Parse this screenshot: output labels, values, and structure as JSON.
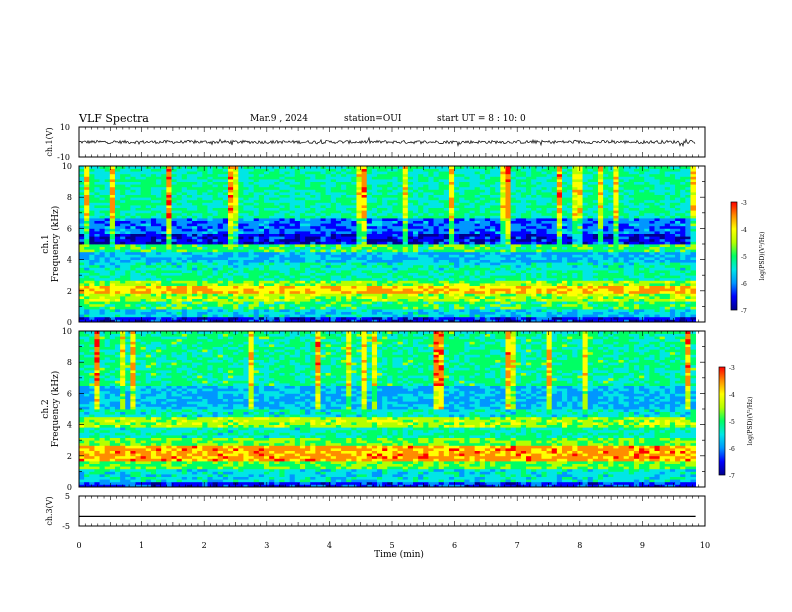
{
  "header": {
    "title": "VLF Spectra",
    "date": "Mar.9 , 2024",
    "station": "station=OUI",
    "start": "start UT = 8 : 10: 0"
  },
  "colors": {
    "trace": "#000000",
    "colormap": [
      "#00008c",
      "#0000ff",
      "#0096ff",
      "#00e6e6",
      "#00ff64",
      "#b4ff00",
      "#ffff00",
      "#ff8c00",
      "#ff0000",
      "#ff9696",
      "#ffffff"
    ]
  },
  "chart_data": [
    {
      "type": "line",
      "name": "ch1-waveform",
      "ylabel": "ch.1(V)",
      "ylim": [
        -10,
        10
      ],
      "yticks": [
        "10",
        "-10"
      ],
      "xlim": [
        0,
        10
      ],
      "trace_level": 0,
      "trace_end": 9.85,
      "annotation": "waveform noise band approx ±1 V"
    },
    {
      "type": "heatmap",
      "name": "ch1-spectrogram",
      "ylabel": "Frequency (kHz)",
      "channel_label": "ch.1",
      "ylim": [
        0,
        10
      ],
      "yticks": [
        "0",
        "2",
        "4",
        "6",
        "8",
        "10"
      ],
      "xlim": [
        0,
        10
      ],
      "data_end": 9.85,
      "colorbar": {
        "label": "log(PSD)(V²/Hz)",
        "range": [
          -7,
          -3
        ],
        "ticks": [
          "-3",
          "-4",
          "-5",
          "-6",
          "-7"
        ]
      },
      "bands": [
        {
          "f": [
            0,
            0.3
          ],
          "level": 0.12
        },
        {
          "f": [
            0.3,
            0.9
          ],
          "level": 0.35
        },
        {
          "f": [
            0.9,
            1.4
          ],
          "level": 0.5
        },
        {
          "f": [
            1.4,
            1.8
          ],
          "level": 0.62
        },
        {
          "f": [
            1.8,
            2.3
          ],
          "level": 0.82
        },
        {
          "f": [
            2.3,
            2.6
          ],
          "level": 0.6
        },
        {
          "f": [
            2.6,
            3.3
          ],
          "level": 0.45
        },
        {
          "f": [
            3.3,
            3.8
          ],
          "level": 0.4
        },
        {
          "f": [
            3.8,
            4.5
          ],
          "level": 0.3
        },
        {
          "f": [
            4.5,
            5.0
          ],
          "level": 0.52
        },
        {
          "f": [
            5.0,
            5.6
          ],
          "level": 0.1
        },
        {
          "f": [
            5.6,
            6.6
          ],
          "level": 0.22
        },
        {
          "f": [
            6.6,
            10.0
          ],
          "level": 0.44
        }
      ]
    },
    {
      "type": "heatmap",
      "name": "ch2-spectrogram",
      "ylabel": "Frequency (kHz)",
      "channel_label": "ch.2",
      "ylim": [
        0,
        10
      ],
      "yticks": [
        "0",
        "2",
        "4",
        "6",
        "8",
        "10"
      ],
      "xlim": [
        0,
        10
      ],
      "data_end": 9.85,
      "colorbar": {
        "label": "log(PSD)(V²/Hz)",
        "range": [
          -7,
          -3
        ],
        "ticks": [
          "-3",
          "-4",
          "-5",
          "-6",
          "-7"
        ]
      },
      "bands": [
        {
          "f": [
            0,
            0.4
          ],
          "level": 0.15
        },
        {
          "f": [
            0.4,
            1.2
          ],
          "level": 0.38
        },
        {
          "f": [
            1.2,
            1.6
          ],
          "level": 0.55
        },
        {
          "f": [
            1.6,
            2.6
          ],
          "level": 0.85
        },
        {
          "f": [
            2.6,
            3.2
          ],
          "level": 0.55
        },
        {
          "f": [
            3.2,
            3.8
          ],
          "level": 0.42
        },
        {
          "f": [
            3.8,
            4.5
          ],
          "level": 0.62
        },
        {
          "f": [
            4.5,
            5.0
          ],
          "level": 0.4
        },
        {
          "f": [
            5.0,
            6.5
          ],
          "level": 0.3
        },
        {
          "f": [
            6.5,
            10.0
          ],
          "level": 0.46
        }
      ]
    },
    {
      "type": "line",
      "name": "ch3-waveform",
      "ylabel": "ch.3(V)",
      "ylim": [
        -5,
        5
      ],
      "yticks": [
        "5",
        "-5"
      ],
      "xlim": [
        0,
        10
      ],
      "trace_level": -1.8,
      "trace_end": 9.85
    }
  ],
  "xaxis": {
    "label": "Time (min)",
    "ticks": [
      "0",
      "1",
      "2",
      "3",
      "4",
      "5",
      "6",
      "7",
      "8",
      "9",
      "10"
    ]
  }
}
